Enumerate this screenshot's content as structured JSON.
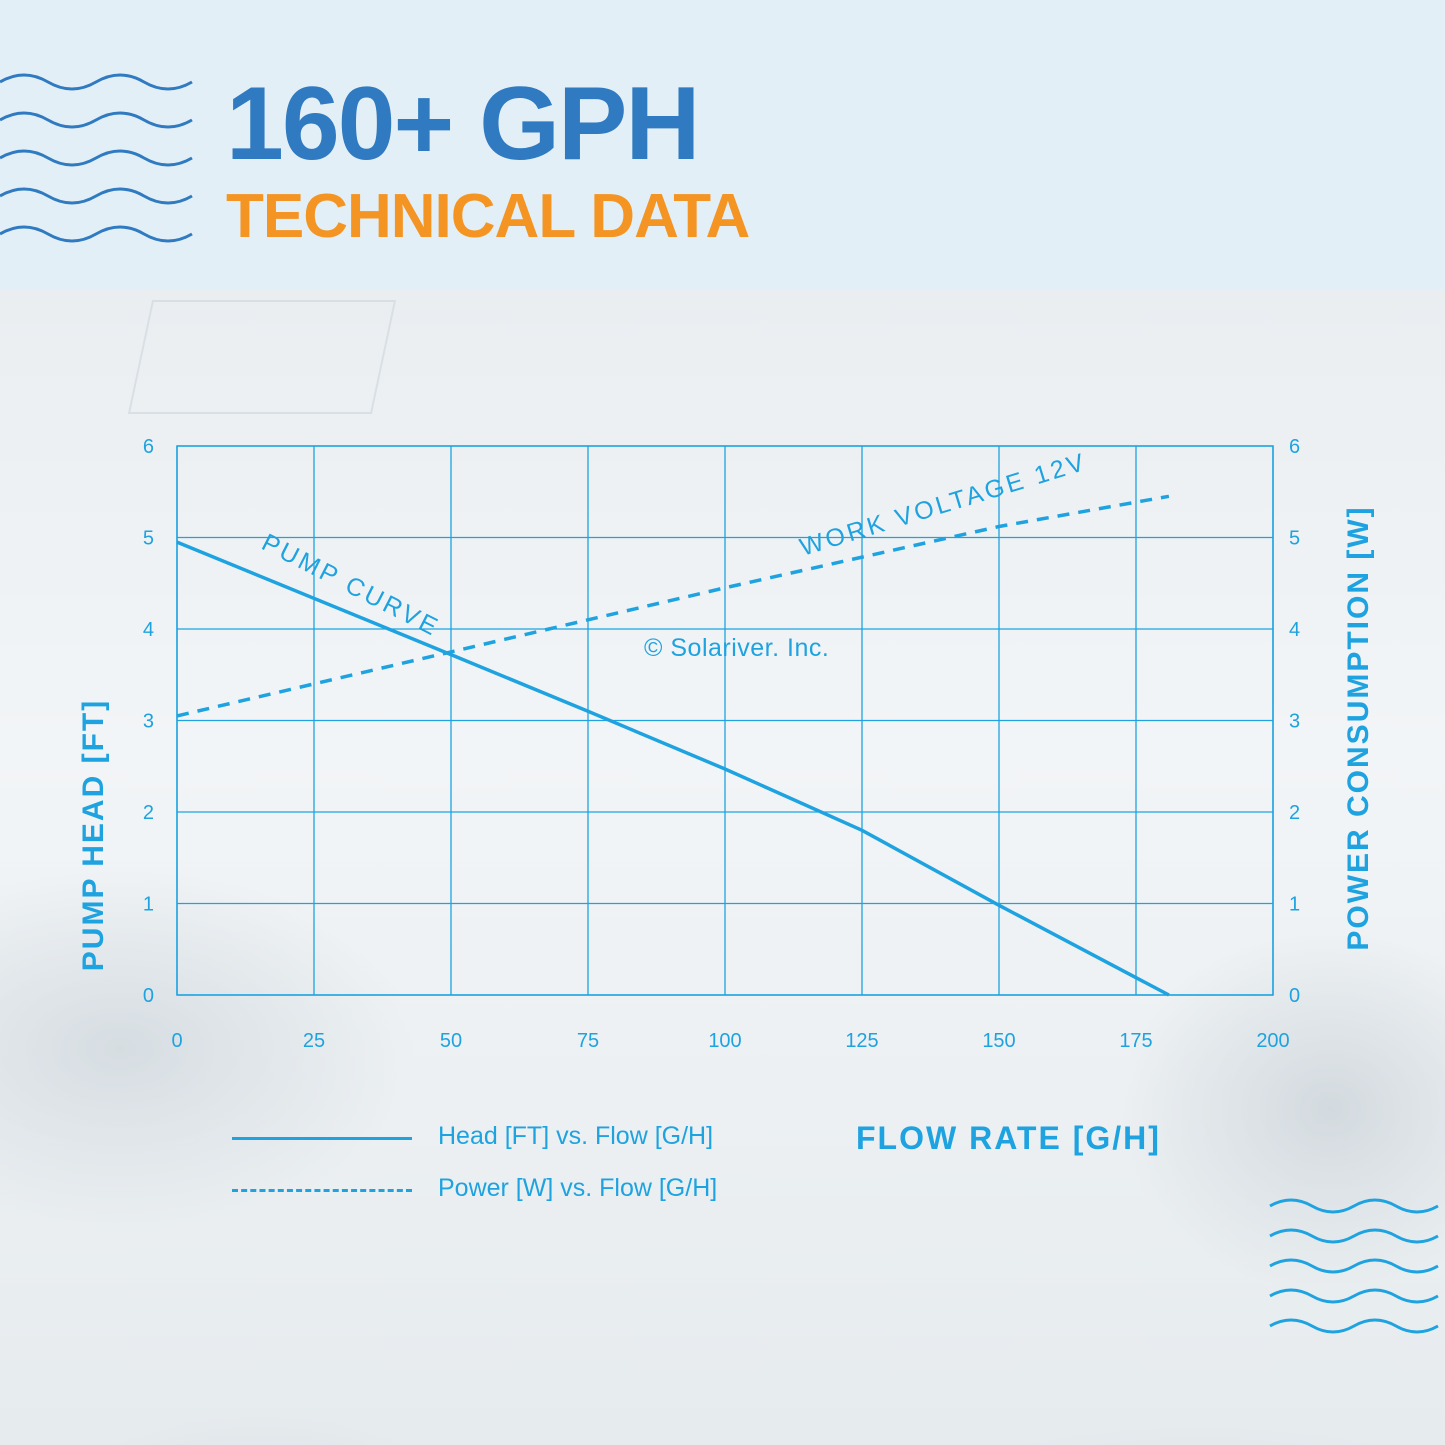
{
  "header": {
    "title": "160+ GPH",
    "subtitle": "TECHNICAL DATA"
  },
  "colors": {
    "title": "#2f7ac0",
    "subtitle": "#f39423",
    "chart": "#1ea3e0",
    "header_bg": "#e3eff6"
  },
  "icons": [
    "waves-icon-top-left",
    "waves-icon-bottom-right"
  ],
  "chart_data": {
    "type": "line",
    "title": "",
    "xlabel": "FLOW RATE [G/H]",
    "ylabel": "PUMP HEAD [FT]",
    "y2label": "POWER CONSUMPTION [W]",
    "xlim": [
      0,
      200
    ],
    "ylim": [
      0,
      6
    ],
    "y2lim": [
      0,
      6
    ],
    "grid": true,
    "x_ticks": [
      0,
      25,
      50,
      75,
      100,
      125,
      150,
      175,
      200
    ],
    "y_ticks": [
      0,
      1,
      2,
      3,
      4,
      5,
      6
    ],
    "y2_ticks": [
      0,
      1,
      2,
      3,
      4,
      5,
      6
    ],
    "series": [
      {
        "name": "Head [FT] vs. Flow [G/H]",
        "style": "solid",
        "axis": "left",
        "x": [
          0,
          50,
          75,
          100,
          125,
          150,
          181
        ],
        "y": [
          4.95,
          3.72,
          3.1,
          2.47,
          1.8,
          0.98,
          0.0
        ]
      },
      {
        "name": "Power [W] vs. Flow [G/H]",
        "style": "dashed",
        "axis": "right",
        "x": [
          0,
          50,
          100,
          150,
          181
        ],
        "y": [
          3.05,
          3.75,
          4.45,
          5.12,
          5.45
        ]
      }
    ],
    "annotations": [
      "PUMP CURVE",
      "WORK VOLTAGE 12V",
      "© Solariver. Inc."
    ],
    "legend_position": "bottom-left"
  }
}
